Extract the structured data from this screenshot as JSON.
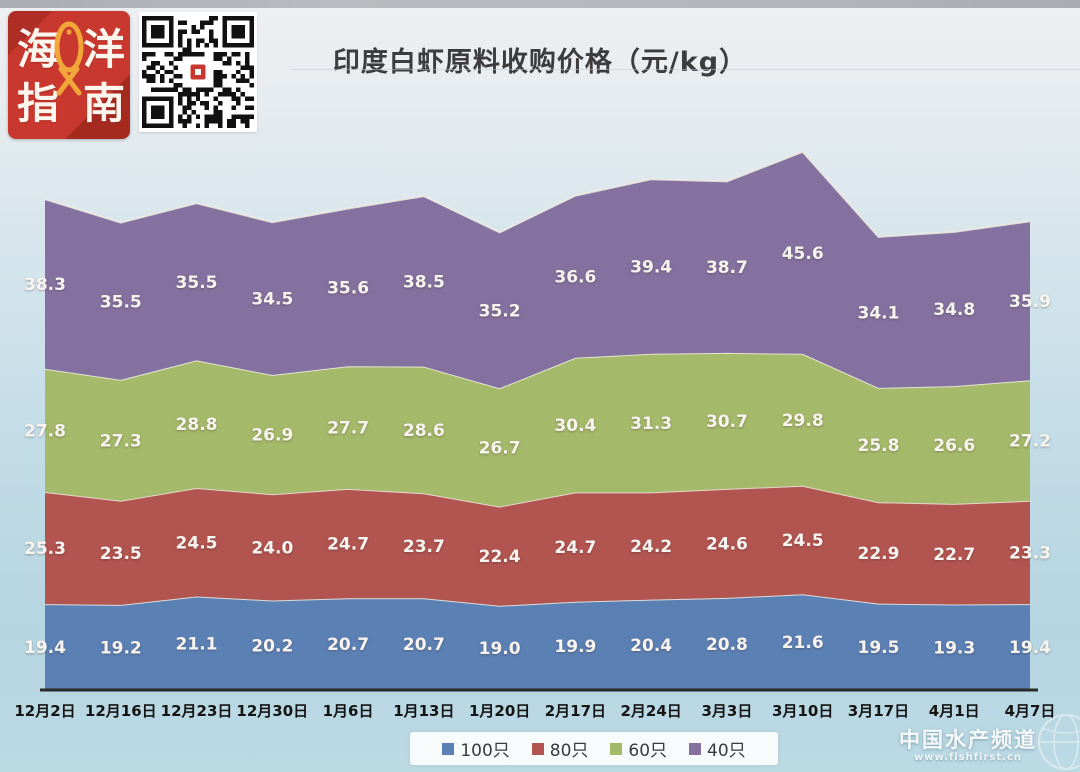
{
  "header": {
    "title": "印度白虾原料收购价格（元/kg）"
  },
  "brand": {
    "chars": [
      "海",
      "洋",
      "指",
      "南"
    ],
    "bg_color": "#c9382e",
    "fish_color": "#f2a63a"
  },
  "chart_data": {
    "type": "area",
    "stacked": true,
    "title": "印度白虾原料收购价格（元/kg）",
    "xlabel": "",
    "ylabel": "",
    "ylim": [
      0,
      130
    ],
    "grid": false,
    "legend_position": "bottom",
    "categories": [
      "12月2日",
      "12月16日",
      "12月23日",
      "12月30日",
      "1月6日",
      "1月13日",
      "1月20日",
      "2月17日",
      "2月24日",
      "3月3日",
      "3月10日",
      "3月17日",
      "4月1日",
      "4月7日"
    ],
    "series": [
      {
        "name": "100只",
        "color": "#5b80b4",
        "values": [
          19.4,
          19.2,
          21.1,
          20.2,
          20.7,
          20.7,
          19.0,
          19.9,
          20.4,
          20.8,
          21.6,
          19.5,
          19.3,
          19.4
        ]
      },
      {
        "name": "80只",
        "color": "#b25450",
        "values": [
          25.3,
          23.5,
          24.5,
          24.0,
          24.7,
          23.7,
          22.4,
          24.7,
          24.2,
          24.6,
          24.5,
          22.9,
          22.7,
          23.3
        ]
      },
      {
        "name": "60只",
        "color": "#a4b96a",
        "values": [
          27.8,
          27.3,
          28.8,
          26.9,
          27.7,
          28.6,
          26.7,
          30.4,
          31.3,
          30.7,
          29.8,
          25.8,
          26.6,
          27.2
        ]
      },
      {
        "name": "40只",
        "color": "#84719f",
        "values": [
          38.3,
          35.5,
          35.5,
          34.5,
          35.6,
          38.5,
          35.2,
          36.6,
          39.4,
          38.7,
          45.6,
          34.1,
          34.8,
          35.9
        ]
      }
    ]
  },
  "watermark": {
    "line1": "中国水产频道",
    "line2": "www.fishfirst.cn"
  }
}
